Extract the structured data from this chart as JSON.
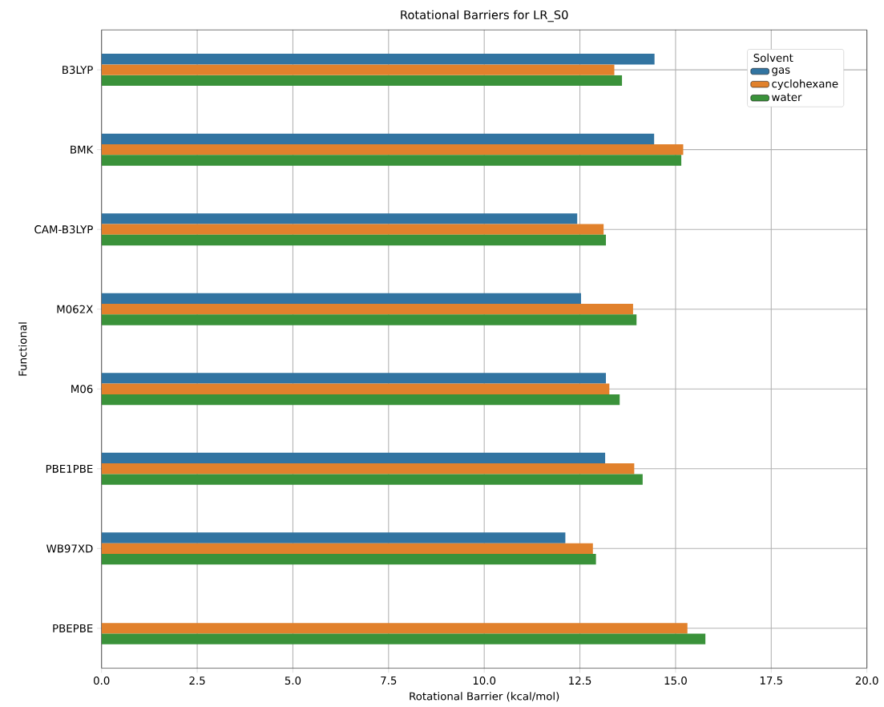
{
  "chart_data": {
    "type": "bar",
    "orientation": "horizontal",
    "title": "Rotational Barriers for LR_S0",
    "xlabel": "Rotational Barrier (kcal/mol)",
    "ylabel": "Functional",
    "legend_title": "Solvent",
    "legend": "top right",
    "grid": true,
    "categories": [
      "B3LYP",
      "BMK",
      "CAM-B3LYP",
      "M062X",
      "M06",
      "PBE1PBE",
      "WB97XD",
      "PBEPBE"
    ],
    "xlim": [
      0,
      20
    ],
    "xticks": [
      {
        "value": 0,
        "label": "0.0"
      },
      {
        "value": 2.5,
        "label": "2.5"
      },
      {
        "value": 5,
        "label": "5.0"
      },
      {
        "value": 7.5,
        "label": "7.5"
      },
      {
        "value": 10,
        "label": "10.0"
      },
      {
        "value": 12.5,
        "label": "12.5"
      },
      {
        "value": 15,
        "label": "15.0"
      },
      {
        "value": 17.5,
        "label": "17.5"
      },
      {
        "value": 20,
        "label": "20.0"
      }
    ],
    "series": [
      {
        "name": "gas",
        "color": "#3274a1",
        "values": [
          14.45,
          14.44,
          12.43,
          12.53,
          13.18,
          13.16,
          12.12,
          null
        ]
      },
      {
        "name": "cyclohexane",
        "color": "#e1812c",
        "values": [
          13.4,
          15.2,
          13.12,
          13.89,
          13.27,
          13.92,
          12.84,
          15.31
        ]
      },
      {
        "name": "water",
        "color": "#3a923a",
        "values": [
          13.6,
          15.15,
          13.18,
          13.98,
          13.54,
          14.14,
          12.92,
          15.78
        ]
      }
    ]
  }
}
